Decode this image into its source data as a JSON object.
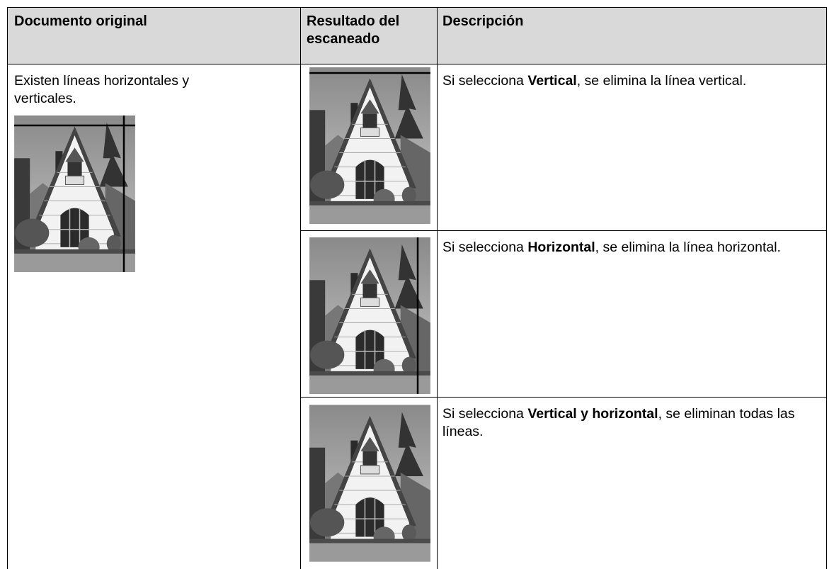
{
  "table": {
    "header": [
      "Documento original",
      "Resultado del escaneado",
      "Descripción"
    ],
    "original": "Existen líneas horizontales y verticales.",
    "rows": [
      [
        "Si selecciona ",
        "Vertical",
        ", se elimina la línea vertical."
      ],
      [
        "Si selecciona ",
        "Horizontal",
        ", se elimina la línea horizontal."
      ],
      [
        "Si selecciona ",
        "Vertical y horizontal",
        ", se eliminan todas las líneas."
      ]
    ]
  }
}
